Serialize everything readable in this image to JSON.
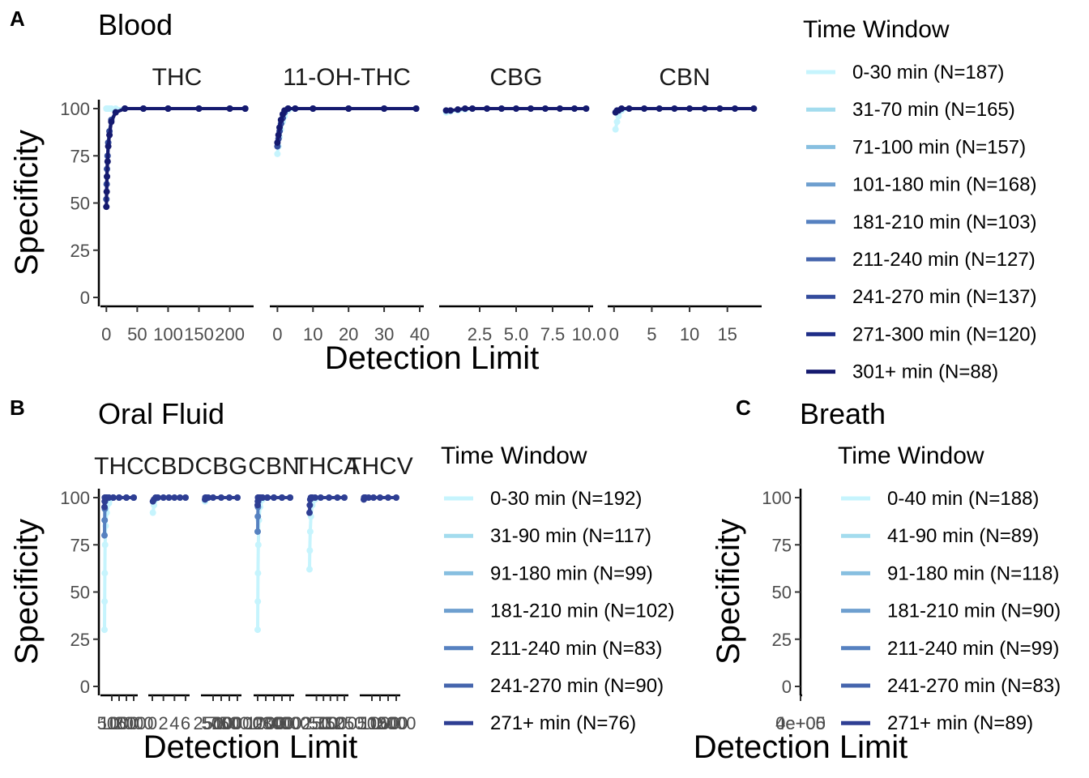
{
  "chart_data": [
    {
      "panel": "A",
      "type": "scatter",
      "title": "Blood",
      "xlabel": "Detection Limit",
      "ylabel": "Specificity",
      "ylim": [
        0,
        100
      ],
      "y_ticks": [
        "0",
        "25",
        "50",
        "75",
        "100"
      ],
      "legend_title": "Time Window",
      "legend_placement": "right",
      "grid": false,
      "series_names": [
        "0-30 min (N=187)",
        "31-70 min (N=165)",
        "71-100 min (N=157)",
        "101-180 min (N=168)",
        "181-210 min (N=103)",
        "211-240 min (N=127)",
        "241-270 min (N=137)",
        "271-300 min (N=120)",
        "301+ min (N=88)"
      ],
      "colors": [
        "#c6f4fd",
        "#a3dcee",
        "#87bfe0",
        "#6e9fcf",
        "#5681c0",
        "#4565ad",
        "#334b9c",
        "#1f2e88",
        "#151a6f"
      ],
      "facets": [
        {
          "label": "THC",
          "xlim": [
            -3,
            232
          ],
          "x_ticks": [
            0,
            50,
            100,
            150,
            200
          ],
          "x_tick_labels": [
            "0",
            "50",
            "100",
            "150",
            "200"
          ],
          "series": [
            {
              "x": [
                0,
                0.5,
                1,
                2,
                3,
                5,
                8,
                15,
                30,
                60,
                100,
                150,
                200,
                225
              ],
              "y": [
                100,
                100,
                100,
                100,
                100,
                100,
                100,
                100,
                100,
                100,
                100,
                100,
                100,
                100
              ]
            },
            {
              "x": [
                0,
                0.5,
                1,
                2,
                3,
                5,
                8,
                15,
                30,
                60,
                100,
                150,
                200,
                225
              ],
              "y": [
                52,
                60,
                68,
                75,
                82,
                88,
                94,
                98,
                100,
                100,
                100,
                100,
                100,
                100
              ]
            },
            {
              "x": [
                0,
                0.5,
                1,
                2,
                3,
                5,
                8,
                15,
                30,
                60,
                100,
                150,
                200,
                225
              ],
              "y": [
                48,
                56,
                64,
                72,
                80,
                86,
                93,
                98,
                100,
                100,
                100,
                100,
                100,
                100
              ]
            }
          ]
        },
        {
          "label": "11-OH-THC",
          "xlim": [
            -1,
            40
          ],
          "x_ticks": [
            0,
            10,
            20,
            30,
            40
          ],
          "x_tick_labels": [
            "0",
            "10",
            "20",
            "30",
            "40"
          ],
          "series": [
            {
              "x": [
                0,
                0.3,
                0.6,
                1,
                1.5,
                2,
                3,
                5,
                10,
                20,
                30,
                39
              ],
              "y": [
                76,
                80,
                85,
                89,
                93,
                96,
                99,
                100,
                100,
                100,
                100,
                100
              ]
            },
            {
              "x": [
                0,
                0.3,
                0.6,
                1,
                1.5,
                2,
                3,
                5,
                10,
                20,
                30,
                39
              ],
              "y": [
                80,
                84,
                88,
                92,
                95,
                98,
                100,
                100,
                100,
                100,
                100,
                100
              ]
            },
            {
              "x": [
                0,
                0.3,
                0.6,
                1,
                1.5,
                2,
                3,
                5,
                10,
                20,
                30,
                39
              ],
              "y": [
                82,
                86,
                90,
                94,
                97,
                99,
                100,
                100,
                100,
                100,
                100,
                100
              ]
            }
          ]
        },
        {
          "label": "CBG",
          "xlim": [
            0,
            10
          ],
          "x_ticks": [
            2.5,
            5.0,
            7.5,
            10.0
          ],
          "x_tick_labels": [
            "2.5",
            "5.0",
            "7.5",
            "10.0"
          ],
          "series": [
            {
              "x": [
                0.2,
                0.5,
                1,
                1.5,
                2,
                3,
                4,
                5,
                6,
                7,
                8,
                9,
                9.8
              ],
              "y": [
                98,
                98.5,
                99,
                99.5,
                100,
                100,
                100,
                100,
                100,
                100,
                100,
                100,
                100
              ]
            },
            {
              "x": [
                0.2,
                0.5,
                1,
                1.5,
                2,
                3,
                4,
                5,
                6,
                7,
                8,
                9,
                9.8
              ],
              "y": [
                99,
                99,
                99.5,
                100,
                100,
                100,
                100,
                100,
                100,
                100,
                100,
                100,
                100
              ]
            }
          ]
        },
        {
          "label": "CBN",
          "xlim": [
            -0.3,
            19
          ],
          "x_ticks": [
            0,
            5,
            10,
            15
          ],
          "x_tick_labels": [
            "0",
            "5",
            "10",
            "15"
          ],
          "series": [
            {
              "x": [
                0.2,
                0.4,
                0.6,
                1,
                2,
                4,
                6,
                8,
                10,
                12,
                14,
                16,
                18.5
              ],
              "y": [
                89,
                93,
                96,
                99,
                100,
                100,
                100,
                100,
                100,
                100,
                100,
                100,
                100
              ]
            },
            {
              "x": [
                0.2,
                0.4,
                0.6,
                1,
                2,
                4,
                6,
                8,
                10,
                12,
                14,
                16,
                18.5
              ],
              "y": [
                98,
                99,
                99,
                100,
                100,
                100,
                100,
                100,
                100,
                100,
                100,
                100,
                100
              ]
            }
          ]
        }
      ]
    },
    {
      "panel": "B",
      "type": "scatter",
      "title": "Oral Fluid",
      "xlabel": "Detection Limit",
      "ylabel": "Specificity",
      "ylim": [
        0,
        100
      ],
      "y_ticks": [
        "0",
        "25",
        "50",
        "75",
        "100"
      ],
      "legend_title": "Time Window",
      "legend_placement": "right",
      "grid": false,
      "series_names": [
        "0-30 min (N=192)",
        "31-90 min (N=117)",
        "91-180 min (N=99)",
        "181-210 min (N=102)",
        "211-240 min (N=83)",
        "241-270 min (N=90)",
        "271+ min (N=76)"
      ],
      "colors": [
        "#c6f4fd",
        "#a3dcee",
        "#87bfe0",
        "#6e9fcf",
        "#5681c0",
        "#4565ad",
        "#2e3e93"
      ],
      "facets": [
        {
          "label": "THC",
          "xlim": [
            0,
            2000
          ],
          "x_ticks": [
            500,
            1000,
            1500,
            2000
          ],
          "x_tick_labels": [
            "500",
            "1000",
            "1500",
            "2000"
          ],
          "series": [
            {
              "x": [
                0,
                10,
                20,
                40,
                80,
                150,
                300,
                600,
                1000,
                1500,
                2000
              ],
              "y": [
                30,
                45,
                60,
                75,
                85,
                92,
                97,
                100,
                100,
                100,
                100
              ]
            },
            {
              "x": [
                0,
                10,
                20,
                40,
                80,
                150,
                300,
                600,
                1000,
                1500,
                2000
              ],
              "y": [
                80,
                88,
                94,
                98,
                100,
                100,
                100,
                100,
                100,
                100,
                100
              ]
            },
            {
              "x": [
                0,
                10,
                20,
                40,
                80,
                150,
                300,
                600,
                1000,
                1500,
                2000
              ],
              "y": [
                95,
                98,
                100,
                100,
                100,
                100,
                100,
                100,
                100,
                100,
                100
              ]
            }
          ]
        },
        {
          "label": "CBD",
          "xlim": [
            0,
            6
          ],
          "x_ticks": [
            0,
            2,
            4,
            6
          ],
          "x_tick_labels": [
            "0",
            "2",
            "4",
            "6"
          ],
          "series": [
            {
              "x": [
                0.1,
                0.3,
                0.6,
                1,
                2,
                3,
                4,
                5,
                6
              ],
              "y": [
                92,
                96,
                99,
                100,
                100,
                100,
                100,
                100,
                100
              ]
            },
            {
              "x": [
                0.1,
                0.3,
                0.6,
                1,
                2,
                3,
                4,
                5,
                6
              ],
              "y": [
                98,
                99,
                100,
                100,
                100,
                100,
                100,
                100,
                100
              ]
            }
          ]
        },
        {
          "label": "CBG",
          "xlim": [
            0,
            10000
          ],
          "x_ticks": [
            2500,
            5000,
            7500,
            10000
          ],
          "x_tick_labels": [
            "2500",
            "5000",
            "7500",
            "10000"
          ],
          "series": [
            {
              "x": [
                10,
                100,
                300,
                1000,
                2500,
                5000,
                7500,
                10000
              ],
              "y": [
                98,
                99,
                100,
                100,
                100,
                100,
                100,
                100
              ]
            },
            {
              "x": [
                10,
                100,
                300,
                1000,
                2500,
                5000,
                7500,
                10000
              ],
              "y": [
                99,
                100,
                100,
                100,
                100,
                100,
                100,
                100
              ]
            }
          ]
        },
        {
          "label": "CBN",
          "xlim": [
            0,
            4000
          ],
          "x_ticks": [
            0,
            1000,
            2000,
            3000,
            4000
          ],
          "x_tick_labels": [
            "0",
            "1000",
            "2000",
            "3000",
            "4000"
          ],
          "series": [
            {
              "x": [
                0,
                20,
                40,
                80,
                150,
                300,
                600,
                1200,
                2000,
                3000,
                4000
              ],
              "y": [
                30,
                45,
                60,
                75,
                88,
                95,
                99,
                100,
                100,
                100,
                100
              ]
            },
            {
              "x": [
                0,
                20,
                40,
                80,
                150,
                300,
                600,
                1200,
                2000,
                3000,
                4000
              ],
              "y": [
                82,
                90,
                95,
                98,
                100,
                100,
                100,
                100,
                100,
                100,
                100
              ]
            },
            {
              "x": [
                0,
                20,
                40,
                80,
                150,
                300,
                600,
                1200,
                2000,
                3000,
                4000
              ],
              "y": [
                96,
                98,
                100,
                100,
                100,
                100,
                100,
                100,
                100,
                100,
                100
              ]
            }
          ]
        },
        {
          "label": "THCA",
          "xlim": [
            0,
            1250
          ],
          "x_ticks": [
            250,
            500,
            750,
            1000,
            1250
          ],
          "x_tick_labels": [
            "250",
            "500",
            "750",
            "1000",
            "1250"
          ],
          "series": [
            {
              "x": [
                0,
                10,
                25,
                50,
                100,
                200,
                400,
                700,
                1000,
                1250
              ],
              "y": [
                62,
                72,
                82,
                90,
                96,
                99,
                100,
                100,
                100,
                100
              ]
            },
            {
              "x": [
                0,
                10,
                25,
                50,
                100,
                200,
                400,
                700,
                1000,
                1250
              ],
              "y": [
                92,
                96,
                99,
                100,
                100,
                100,
                100,
                100,
                100,
                100
              ]
            }
          ]
        },
        {
          "label": "THCV",
          "xlim": [
            0,
            2000
          ],
          "x_ticks": [
            500,
            1000,
            1500,
            2000
          ],
          "x_tick_labels": [
            "500",
            "1000",
            "1500",
            "2000"
          ],
          "series": [
            {
              "x": [
                0,
                20,
                50,
                100,
                300,
                600,
                1000,
                1500,
                2000
              ],
              "y": [
                99,
                100,
                100,
                100,
                100,
                100,
                100,
                100,
                100
              ]
            }
          ]
        }
      ]
    },
    {
      "panel": "C",
      "type": "scatter",
      "title": "Breath",
      "xlabel": "Detection Limit",
      "ylabel": "Specificity",
      "ylim": [
        0,
        100
      ],
      "y_ticks": [
        "0",
        "25",
        "50",
        "75",
        "100"
      ],
      "x_tick_labels": [
        "0e+00",
        "4e+05"
      ],
      "legend_title": "Time Window",
      "legend_placement": "right",
      "grid": false,
      "series_names": [
        "0-40 min (N=188)",
        "41-90 min (N=89)",
        "91-180 min (N=118)",
        "181-210 min (N=90)",
        "211-240 min (N=99)",
        "241-270 min (N=83)",
        "271+ min (N=89)"
      ],
      "colors": [
        "#c6f4fd",
        "#a3dcee",
        "#87bfe0",
        "#6e9fcf",
        "#5681c0",
        "#4565ad",
        "#2e3e93"
      ],
      "facets": []
    }
  ]
}
